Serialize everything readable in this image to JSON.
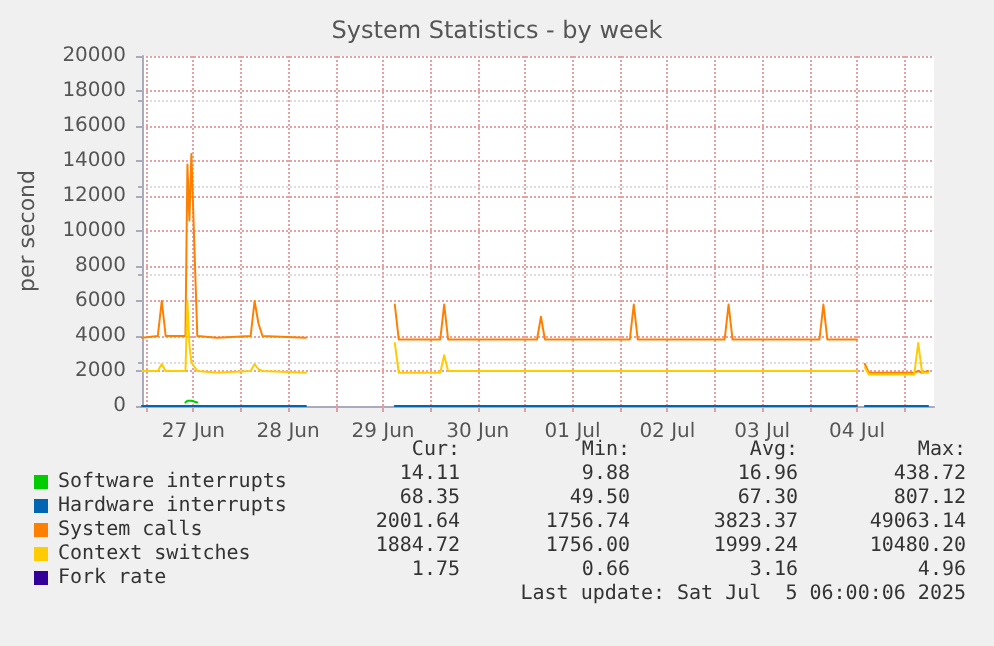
{
  "chart_data": {
    "type": "line",
    "title": "System Statistics - by week",
    "ylabel": "per second",
    "x": [
      "2025-06-26T23:00",
      "2025-06-27T03:00",
      "2025-06-27T04:00",
      "2025-06-27T05:00",
      "2025-06-27T10:00",
      "2025-06-27T10:30",
      "2025-06-27T11:00",
      "2025-06-27T11:30",
      "2025-06-27T13:00",
      "2025-06-27T18:00",
      "2025-06-28T02:30",
      "2025-06-28T03:30",
      "2025-06-28T04:30",
      "2025-06-28T05:30",
      "2025-06-28T16:30",
      "2025-06-28T17:00",
      "2025-06-29T15:00",
      "2025-06-29T16:00",
      "2025-06-30T02:30",
      "2025-06-30T03:30",
      "2025-06-30T04:30",
      "2025-07-01T03:00",
      "2025-07-01T04:00",
      "2025-07-01T05:00",
      "2025-07-02T02:30",
      "2025-07-02T03:30",
      "2025-07-02T04:30",
      "2025-07-03T02:30",
      "2025-07-03T03:30",
      "2025-07-03T04:30",
      "2025-07-04T02:30",
      "2025-07-04T03:30",
      "2025-07-04T04:30",
      "2025-07-04T12:00",
      "2025-07-04T13:00",
      "2025-07-04T14:00",
      "2025-07-04T15:00",
      "2025-07-05T02:30",
      "2025-07-05T03:30",
      "2025-07-05T04:30",
      "2025-07-05T06:00"
    ],
    "series": [
      {
        "name": "Software interrupts",
        "color": "#00cc00",
        "values": [
          null,
          null,
          null,
          null,
          200,
          300,
          300,
          300,
          200,
          null,
          null,
          null,
          null,
          null,
          null,
          null,
          null,
          null,
          null,
          null,
          null,
          null,
          null,
          null,
          null,
          null,
          null,
          null,
          null,
          null,
          null,
          null,
          null,
          null,
          null,
          null,
          null,
          null,
          null,
          null,
          null
        ]
      },
      {
        "name": "Hardware interrupts",
        "color": "#0066b3",
        "values": [
          0,
          0,
          0,
          0,
          0,
          0,
          0,
          0,
          0,
          0,
          0,
          0,
          0,
          0,
          0,
          null,
          0,
          0,
          0,
          0,
          0,
          0,
          0,
          0,
          0,
          0,
          0,
          0,
          0,
          0,
          0,
          0,
          0,
          0,
          null,
          0,
          0,
          0,
          0,
          0,
          0
        ]
      },
      {
        "name": "System calls",
        "color": "#ff8000",
        "values": [
          3900,
          4000,
          6000,
          4000,
          4000,
          13800,
          10600,
          14400,
          4000,
          3900,
          4000,
          6000,
          4700,
          4000,
          3900,
          null,
          5800,
          3800,
          3800,
          5800,
          3800,
          3800,
          5100,
          3800,
          3800,
          5800,
          3800,
          3800,
          5800,
          3800,
          3800,
          5800,
          3800,
          3800,
          null,
          2400,
          1900,
          1900,
          2000,
          1900,
          2000
        ]
      },
      {
        "name": "Context switches",
        "color": "#ffcc00",
        "values": [
          2000,
          2000,
          2400,
          2000,
          2000,
          6000,
          3500,
          2500,
          2000,
          1900,
          2000,
          2400,
          2100,
          2000,
          1900,
          null,
          3600,
          1900,
          1900,
          2900,
          2000,
          2000,
          2000,
          2000,
          2000,
          2000,
          2000,
          2000,
          2000,
          2000,
          2000,
          2000,
          2000,
          2000,
          null,
          2200,
          1800,
          1800,
          3600,
          1900,
          1900
        ]
      },
      {
        "name": "Fork rate",
        "color": "#330099",
        "values": [
          null,
          null,
          null,
          null,
          null,
          null,
          null,
          null,
          null,
          null,
          null,
          null,
          null,
          null,
          null,
          null,
          null,
          null,
          null,
          null,
          null,
          null,
          null,
          null,
          null,
          null,
          null,
          null,
          null,
          null,
          null,
          null,
          null,
          null,
          null,
          null,
          null,
          null,
          null,
          null,
          null
        ]
      }
    ],
    "xlim": [
      "2025-06-26T23:00",
      "2025-07-05T07:30"
    ],
    "xticks": [
      {
        "value": "2025-06-27T00:00",
        "label": null
      },
      {
        "value": "2025-06-27T12:00",
        "label": "27 Jun"
      },
      {
        "value": "2025-06-28T00:00",
        "label": null
      },
      {
        "value": "2025-06-28T12:00",
        "label": "28 Jun"
      },
      {
        "value": "2025-06-29T00:00",
        "label": null
      },
      {
        "value": "2025-06-29T12:00",
        "label": "29 Jun"
      },
      {
        "value": "2025-06-30T00:00",
        "label": null
      },
      {
        "value": "2025-06-30T12:00",
        "label": "30 Jun"
      },
      {
        "value": "2025-07-01T00:00",
        "label": null
      },
      {
        "value": "2025-07-01T12:00",
        "label": "01 Jul"
      },
      {
        "value": "2025-07-02T00:00",
        "label": null
      },
      {
        "value": "2025-07-02T12:00",
        "label": "02 Jul"
      },
      {
        "value": "2025-07-03T00:00",
        "label": null
      },
      {
        "value": "2025-07-03T12:00",
        "label": "03 Jul"
      },
      {
        "value": "2025-07-04T00:00",
        "label": null
      },
      {
        "value": "2025-07-04T12:00",
        "label": "04 Jul"
      },
      {
        "value": "2025-07-05T00:00",
        "label": null
      }
    ],
    "ylim": [
      0,
      20000
    ],
    "yticks": [
      0,
      2000,
      4000,
      6000,
      8000,
      10000,
      12000,
      14000,
      16000,
      18000,
      20000
    ],
    "grid": true,
    "legend": "bottom left",
    "marker": "none",
    "line_style": "solid",
    "annotations": [
      "Cur:",
      "Min:",
      "Avg:",
      "Max:",
      "14.11",
      "9.88",
      "16.96",
      "438.72",
      "68.35",
      "49.50",
      "67.30",
      "807.12",
      "2001.64",
      "1756.74",
      "3823.37",
      "49063.14",
      "1884.72",
      "1756.00",
      "1999.24",
      "10480.20",
      "1.75",
      "0.66",
      "3.16",
      "4.96",
      "Last update: Sat Jul  5 06:00:06 2025"
    ]
  }
}
